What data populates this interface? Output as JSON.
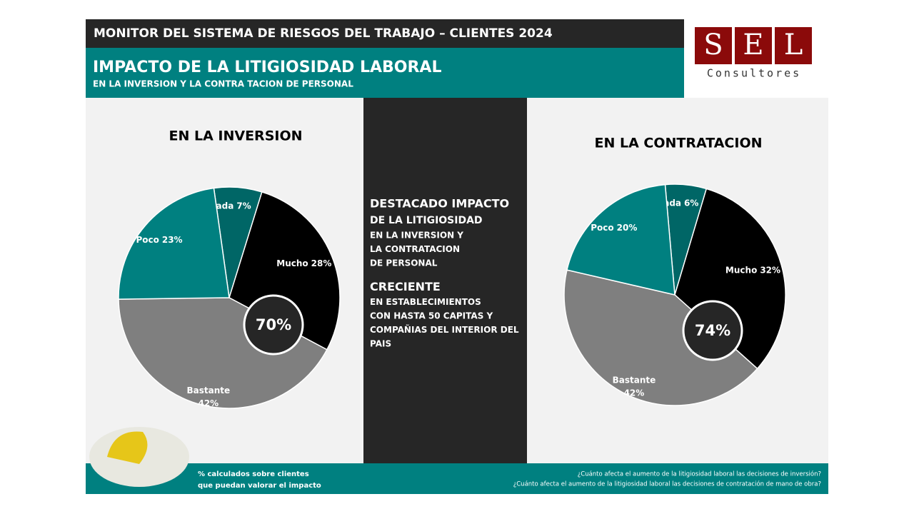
{
  "header": {
    "title": "MONITOR DEL SISTEMA DE RIESGOS DEL TRABAJO – CLIENTES 2024",
    "heading": "IMPACTO DE LA LITIGIOSIDAD LABORAL",
    "subheading": "EN LA INVERSION Y LA CONTRA TACION DE PERSONAL"
  },
  "logo": {
    "letters": [
      "S",
      "E",
      "L"
    ],
    "text": "Consultores"
  },
  "chart_data": [
    {
      "type": "pie",
      "title": "EN LA INVERSION",
      "categories": [
        "Nada",
        "Mucho",
        "Bastante",
        "Poco"
      ],
      "values": [
        7,
        28,
        42,
        23
      ],
      "value_labels": [
        "7%",
        "28%",
        "42%",
        "23%"
      ],
      "colors": [
        "#006666",
        "#000000",
        "#7f7f7f",
        "#008080"
      ],
      "center_label": "70%"
    },
    {
      "type": "pie",
      "title": "EN LA CONTRATACION",
      "categories": [
        "Nada",
        "Mucho",
        "Bastante",
        "Poco"
      ],
      "values": [
        6,
        32,
        42,
        20
      ],
      "value_labels": [
        "6%",
        "32%",
        "42%",
        "20%"
      ],
      "colors": [
        "#006666",
        "#000000",
        "#7f7f7f",
        "#008080"
      ],
      "center_label": "74%"
    }
  ],
  "highlights": [
    {
      "heading": [
        "DESTACADO IMPACTO",
        "DE LA LITIGIOSIDAD"
      ],
      "body": [
        "EN LA INVERSION Y",
        "LA CONTRATACION",
        "DE PERSONAL"
      ]
    },
    {
      "heading": [
        "CRECIENTE"
      ],
      "body": [
        "EN ESTABLECIMIENTOS",
        "CON HASTA 50 CAPITAS Y",
        "COMPAÑIAS DEL INTERIOR DEL",
        "PAIS"
      ]
    }
  ],
  "footer": {
    "note": [
      "% calculados sobre clientes",
      "que puedan valorar el impacto"
    ],
    "questions": [
      "¿Cuánto afecta el aumento de la litigiosidad laboral las decisiones de inversión?",
      "¿Cuánto afecta el aumento de la litigiosidad laboral las decisiones de contratación de mano de obra?"
    ]
  }
}
